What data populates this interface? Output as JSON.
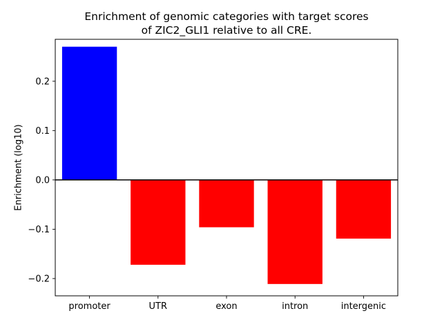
{
  "titles": {
    "line1": "Enrichment of genomic categories with target scores",
    "line2": "of ZIC2_GLI1 relative to all CRE."
  },
  "chart_data": {
    "type": "bar",
    "title": "Enrichment of genomic categories with target scores of ZIC2_GLI1 relative to all CRE.",
    "categories": [
      "promoter",
      "UTR",
      "exon",
      "intron",
      "intergenic"
    ],
    "values": [
      0.27,
      -0.172,
      -0.096,
      -0.211,
      -0.119
    ],
    "bar_colors": [
      "#0000ff",
      "#ff0000",
      "#ff0000",
      "#ff0000",
      "#ff0000"
    ],
    "xlabel": "",
    "ylabel": "Enrichment (log10)",
    "ylim": [
      -0.235,
      0.285
    ],
    "yticks": [
      -0.2,
      -0.1,
      0.0,
      0.1,
      0.2
    ],
    "bar_width_fraction": 0.8,
    "zero_line": true,
    "grid": false,
    "legend": "none",
    "positive_color": "#0000ff",
    "negative_color": "#ff0000",
    "axis_color": "#000000"
  }
}
